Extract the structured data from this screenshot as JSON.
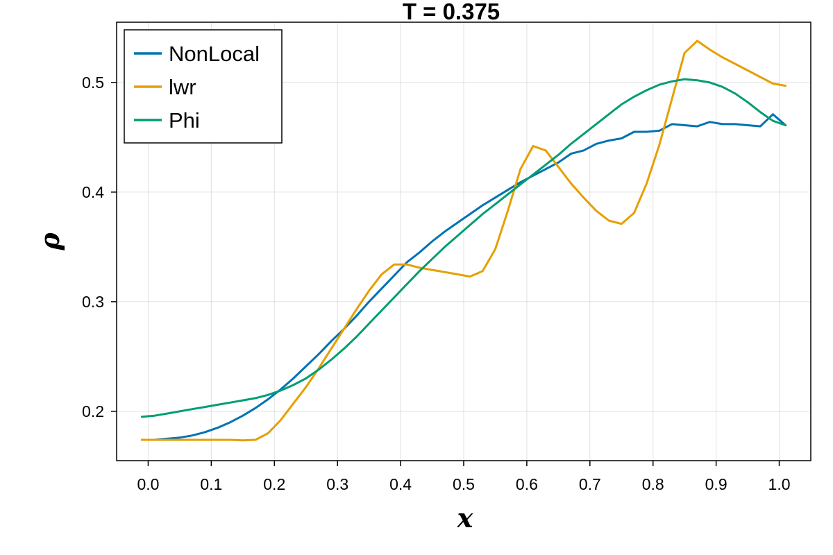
{
  "chart_data": {
    "type": "line",
    "title": "T = 0.375",
    "xlabel": "x",
    "ylabel": "ρ",
    "xlim": [
      -0.05,
      1.05
    ],
    "ylim": [
      0.155,
      0.555
    ],
    "xticks": [
      "0.0",
      "0.1",
      "0.2",
      "0.3",
      "0.4",
      "0.5",
      "0.6",
      "0.7",
      "0.8",
      "0.9",
      "1.0"
    ],
    "xtick_values": [
      0,
      0.1,
      0.2,
      0.3,
      0.4,
      0.5,
      0.6,
      0.7,
      0.8,
      0.9,
      1.0
    ],
    "yticks": [
      "0.2",
      "0.3",
      "0.4",
      "0.5"
    ],
    "ytick_values": [
      0.2,
      0.3,
      0.4,
      0.5
    ],
    "grid": true,
    "legend_position": "top-left",
    "series": [
      {
        "name": "NonLocal",
        "color": "#0072b2",
        "x": [
          -0.01,
          0.01,
          0.03,
          0.05,
          0.07,
          0.09,
          0.11,
          0.13,
          0.15,
          0.17,
          0.19,
          0.21,
          0.23,
          0.25,
          0.27,
          0.29,
          0.31,
          0.33,
          0.35,
          0.37,
          0.39,
          0.41,
          0.43,
          0.45,
          0.47,
          0.49,
          0.51,
          0.53,
          0.55,
          0.57,
          0.59,
          0.61,
          0.63,
          0.65,
          0.67,
          0.69,
          0.71,
          0.73,
          0.75,
          0.77,
          0.79,
          0.81,
          0.83,
          0.85,
          0.87,
          0.89,
          0.91,
          0.93,
          0.95,
          0.97,
          0.99,
          1.01
        ],
        "y": [
          0.174,
          0.174,
          0.175,
          0.176,
          0.178,
          0.181,
          0.185,
          0.19,
          0.196,
          0.203,
          0.211,
          0.22,
          0.23,
          0.241,
          0.252,
          0.264,
          0.275,
          0.287,
          0.3,
          0.312,
          0.324,
          0.336,
          0.345,
          0.355,
          0.364,
          0.372,
          0.38,
          0.388,
          0.395,
          0.402,
          0.409,
          0.415,
          0.421,
          0.427,
          0.435,
          0.438,
          0.444,
          0.447,
          0.449,
          0.455,
          0.455,
          0.456,
          0.462,
          0.461,
          0.46,
          0.464,
          0.462,
          0.462,
          0.461,
          0.46,
          0.471,
          0.461
        ]
      },
      {
        "name": "lwr",
        "color": "#e69f00",
        "x": [
          -0.01,
          0.01,
          0.03,
          0.05,
          0.07,
          0.09,
          0.11,
          0.13,
          0.15,
          0.17,
          0.19,
          0.21,
          0.23,
          0.25,
          0.27,
          0.29,
          0.31,
          0.33,
          0.35,
          0.37,
          0.39,
          0.41,
          0.43,
          0.45,
          0.47,
          0.49,
          0.51,
          0.53,
          0.55,
          0.57,
          0.59,
          0.61,
          0.63,
          0.65,
          0.67,
          0.69,
          0.71,
          0.73,
          0.75,
          0.77,
          0.79,
          0.81,
          0.83,
          0.85,
          0.87,
          0.89,
          0.91,
          0.93,
          0.95,
          0.97,
          0.99,
          1.01
        ],
        "y": [
          0.174,
          0.174,
          0.174,
          0.174,
          0.174,
          0.174,
          0.174,
          0.174,
          0.1735,
          0.174,
          0.18,
          0.192,
          0.207,
          0.222,
          0.239,
          0.257,
          0.275,
          0.293,
          0.31,
          0.325,
          0.334,
          0.334,
          0.331,
          0.329,
          0.327,
          0.325,
          0.323,
          0.328,
          0.348,
          0.383,
          0.421,
          0.442,
          0.438,
          0.423,
          0.408,
          0.395,
          0.383,
          0.374,
          0.371,
          0.381,
          0.408,
          0.443,
          0.485,
          0.527,
          0.538,
          0.53,
          0.523,
          0.517,
          0.511,
          0.505,
          0.499,
          0.497
        ]
      },
      {
        "name": "Phi",
        "color": "#009e73",
        "x": [
          -0.01,
          0.01,
          0.03,
          0.05,
          0.07,
          0.09,
          0.11,
          0.13,
          0.15,
          0.17,
          0.19,
          0.21,
          0.23,
          0.25,
          0.27,
          0.29,
          0.31,
          0.33,
          0.35,
          0.37,
          0.39,
          0.41,
          0.43,
          0.45,
          0.47,
          0.49,
          0.51,
          0.53,
          0.55,
          0.57,
          0.59,
          0.61,
          0.63,
          0.65,
          0.67,
          0.69,
          0.71,
          0.73,
          0.75,
          0.77,
          0.79,
          0.81,
          0.83,
          0.85,
          0.87,
          0.89,
          0.91,
          0.93,
          0.95,
          0.97,
          0.99,
          1.01
        ],
        "y": [
          0.195,
          0.196,
          0.198,
          0.2,
          0.202,
          0.204,
          0.206,
          0.208,
          0.21,
          0.212,
          0.215,
          0.219,
          0.224,
          0.23,
          0.238,
          0.247,
          0.257,
          0.268,
          0.28,
          0.292,
          0.304,
          0.316,
          0.328,
          0.339,
          0.35,
          0.36,
          0.37,
          0.38,
          0.389,
          0.398,
          0.407,
          0.416,
          0.425,
          0.434,
          0.444,
          0.453,
          0.462,
          0.471,
          0.48,
          0.487,
          0.493,
          0.498,
          0.501,
          0.503,
          0.502,
          0.5,
          0.496,
          0.49,
          0.482,
          0.473,
          0.465,
          0.461
        ]
      }
    ]
  }
}
